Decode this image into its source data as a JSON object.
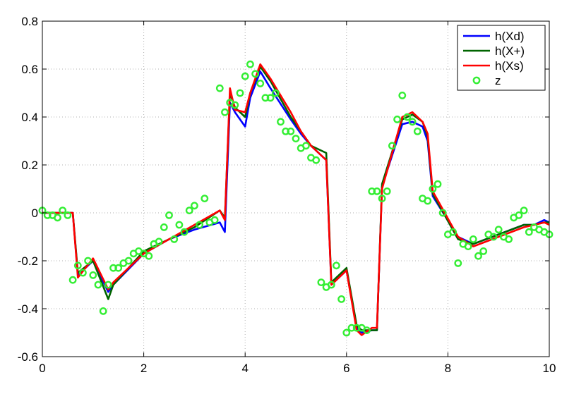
{
  "chart_data": {
    "type": "line",
    "title": "",
    "xlabel": "",
    "ylabel": "",
    "xlim": [
      0,
      10
    ],
    "ylim": [
      -0.6,
      0.8
    ],
    "xticks": [
      0,
      2,
      4,
      6,
      8,
      10
    ],
    "yticks": [
      -0.6,
      -0.4,
      -0.2,
      0,
      0.2,
      0.4,
      0.6,
      0.8
    ],
    "xtick_labels": [
      "0",
      "2",
      "4",
      "6",
      "8",
      "10"
    ],
    "ytick_labels": [
      "-0.6",
      "-0.4",
      "-0.2",
      "0",
      "0.2",
      "0.4",
      "0.6",
      "0.8"
    ],
    "grid": true,
    "legend_position": "top-right",
    "series": [
      {
        "name": "h(Xd)",
        "color": "#0000ff",
        "style": "line",
        "x": [
          0,
          0.6,
          0.7,
          1.0,
          1.3,
          1.4,
          2.0,
          2.5,
          3.0,
          3.5,
          3.6,
          3.7,
          3.8,
          4.0,
          4.1,
          4.3,
          4.5,
          4.9,
          5.1,
          5.3,
          5.6,
          5.7,
          6.0,
          6.2,
          6.3,
          6.5,
          6.6,
          6.7,
          7.1,
          7.3,
          7.5,
          7.6,
          7.7,
          8.2,
          8.5,
          9.0,
          9.5,
          9.7,
          9.9,
          10.0
        ],
        "y": [
          0,
          0,
          -0.26,
          -0.2,
          -0.33,
          -0.3,
          -0.17,
          -0.11,
          -0.07,
          -0.04,
          -0.08,
          0.46,
          0.42,
          0.36,
          0.48,
          0.59,
          0.52,
          0.39,
          0.33,
          0.28,
          0.22,
          -0.3,
          -0.24,
          -0.48,
          -0.5,
          -0.49,
          -0.49,
          0.11,
          0.37,
          0.38,
          0.36,
          0.3,
          0.07,
          -0.1,
          -0.13,
          -0.09,
          -0.05,
          -0.05,
          -0.03,
          -0.04
        ]
      },
      {
        "name": "h(X+)",
        "color": "#006400",
        "style": "line",
        "x": [
          0,
          0.6,
          0.7,
          1.0,
          1.3,
          1.4,
          2.0,
          2.5,
          3.0,
          3.5,
          3.6,
          3.7,
          3.8,
          4.0,
          4.1,
          4.3,
          4.5,
          4.9,
          5.1,
          5.3,
          5.6,
          5.7,
          6.0,
          6.2,
          6.3,
          6.5,
          6.6,
          6.7,
          7.1,
          7.3,
          7.5,
          7.6,
          7.7,
          8.2,
          8.5,
          9.0,
          9.5,
          9.7,
          9.9,
          10.0
        ],
        "y": [
          0,
          0,
          -0.25,
          -0.2,
          -0.36,
          -0.3,
          -0.16,
          -0.11,
          -0.06,
          0.01,
          -0.02,
          0.5,
          0.44,
          0.4,
          0.5,
          0.61,
          0.55,
          0.4,
          0.34,
          0.28,
          0.25,
          -0.29,
          -0.23,
          -0.47,
          -0.49,
          -0.49,
          -0.49,
          0.12,
          0.39,
          0.41,
          0.38,
          0.32,
          0.08,
          -0.11,
          -0.13,
          -0.09,
          -0.05,
          -0.05,
          -0.04,
          -0.04
        ]
      },
      {
        "name": "h(Xs)",
        "color": "#ff0000",
        "style": "line",
        "x": [
          0,
          0.6,
          0.7,
          1.0,
          1.3,
          1.4,
          2.0,
          2.5,
          3.0,
          3.5,
          3.6,
          3.7,
          3.8,
          4.0,
          4.1,
          4.3,
          4.5,
          4.9,
          5.1,
          5.3,
          5.6,
          5.7,
          6.0,
          6.2,
          6.3,
          6.5,
          6.6,
          6.7,
          7.1,
          7.3,
          7.5,
          7.6,
          7.7,
          8.2,
          8.5,
          9.0,
          9.5,
          9.7,
          9.9,
          10.0
        ],
        "y": [
          0,
          0,
          -0.27,
          -0.19,
          -0.32,
          -0.29,
          -0.17,
          -0.11,
          -0.05,
          0.01,
          -0.03,
          0.52,
          0.43,
          0.42,
          0.5,
          0.62,
          0.56,
          0.42,
          0.34,
          0.28,
          0.22,
          -0.3,
          -0.24,
          -0.49,
          -0.51,
          -0.48,
          -0.48,
          0.1,
          0.4,
          0.42,
          0.38,
          0.33,
          0.09,
          -0.1,
          -0.14,
          -0.1,
          -0.06,
          -0.05,
          -0.04,
          -0.05
        ]
      },
      {
        "name": "z",
        "color": "#33ee33",
        "style": "markers",
        "x": [
          0.0,
          0.1,
          0.2,
          0.3,
          0.4,
          0.5,
          0.6,
          0.7,
          0.8,
          0.9,
          1.0,
          1.1,
          1.2,
          1.3,
          1.4,
          1.5,
          1.6,
          1.7,
          1.8,
          1.9,
          2.0,
          2.1,
          2.2,
          2.3,
          2.4,
          2.5,
          2.6,
          2.7,
          2.8,
          2.9,
          3.0,
          3.1,
          3.2,
          3.3,
          3.4,
          3.5,
          3.6,
          3.7,
          3.8,
          3.9,
          4.0,
          4.1,
          4.2,
          4.3,
          4.4,
          4.5,
          4.6,
          4.7,
          4.8,
          4.9,
          5.0,
          5.1,
          5.2,
          5.3,
          5.4,
          5.5,
          5.6,
          5.7,
          5.8,
          5.9,
          6.0,
          6.1,
          6.2,
          6.3,
          6.4,
          6.5,
          6.6,
          6.7,
          6.8,
          6.9,
          7.0,
          7.1,
          7.2,
          7.3,
          7.4,
          7.5,
          7.6,
          7.7,
          7.8,
          7.9,
          8.0,
          8.1,
          8.2,
          8.3,
          8.4,
          8.5,
          8.6,
          8.7,
          8.8,
          8.9,
          9.0,
          9.1,
          9.2,
          9.3,
          9.4,
          9.5,
          9.6,
          9.7,
          9.8,
          9.9,
          10.0
        ],
        "y": [
          0.01,
          -0.01,
          -0.01,
          -0.02,
          0.01,
          -0.01,
          -0.28,
          -0.22,
          -0.25,
          -0.2,
          -0.26,
          -0.3,
          -0.41,
          -0.3,
          -0.23,
          -0.23,
          -0.21,
          -0.2,
          -0.17,
          -0.16,
          -0.17,
          -0.18,
          -0.13,
          -0.12,
          -0.06,
          -0.01,
          -0.11,
          -0.05,
          -0.08,
          0.01,
          0.03,
          -0.05,
          0.06,
          -0.04,
          -0.03,
          0.52,
          0.42,
          0.46,
          0.45,
          0.5,
          0.57,
          0.62,
          0.58,
          0.54,
          0.48,
          0.48,
          0.5,
          0.38,
          0.34,
          0.34,
          0.31,
          0.27,
          0.28,
          0.23,
          0.22,
          -0.29,
          -0.31,
          -0.3,
          -0.22,
          -0.36,
          -0.5,
          -0.48,
          -0.48,
          -0.48,
          -0.49,
          0.09,
          0.09,
          0.06,
          0.09,
          0.28,
          0.39,
          0.49,
          0.4,
          0.38,
          0.34,
          0.06,
          0.05,
          0.1,
          0.12,
          0.0,
          -0.09,
          -0.08,
          -0.21,
          -0.13,
          -0.14,
          -0.11,
          -0.18,
          -0.16,
          -0.09,
          -0.1,
          -0.07,
          -0.1,
          -0.11,
          -0.02,
          -0.01,
          0.01,
          -0.08,
          -0.06,
          -0.07,
          -0.08,
          -0.09
        ]
      }
    ]
  }
}
